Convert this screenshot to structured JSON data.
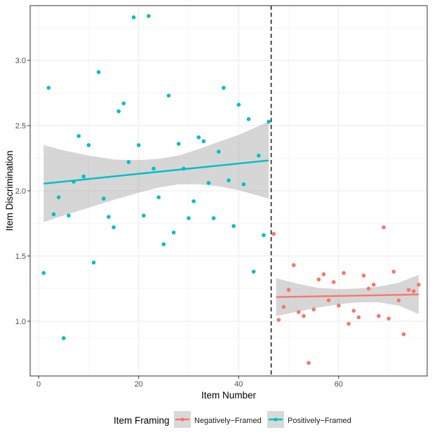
{
  "chart_data": {
    "type": "scatter",
    "xlabel": "Item Number",
    "ylabel": "Item Discrimination",
    "xlim": [
      -1.7,
      77.7
    ],
    "ylim": [
      0.58,
      3.42
    ],
    "xticks": [
      0,
      20,
      40,
      60
    ],
    "xtick_labels": [
      "0",
      "20",
      "40",
      "60"
    ],
    "yticks": [
      1.0,
      1.5,
      2.0,
      2.5,
      3.0
    ],
    "ytick_labels": [
      "1.0",
      "1.5",
      "2.0",
      "2.5",
      "3.0"
    ],
    "cutoff_x": 46.5,
    "grid": true,
    "legend": {
      "title": "Item Framing",
      "position": "bottom",
      "entries": [
        "Negatively−Framed",
        "Positively−Framed"
      ]
    },
    "series": [
      {
        "name": "Positively−Framed",
        "color": "#00BFC4",
        "points": [
          [
            1,
            1.37
          ],
          [
            2,
            2.79
          ],
          [
            3,
            1.82
          ],
          [
            4,
            1.95
          ],
          [
            5,
            0.87
          ],
          [
            6,
            1.81
          ],
          [
            7,
            2.07
          ],
          [
            8,
            2.42
          ],
          [
            9,
            2.11
          ],
          [
            10,
            2.35
          ],
          [
            11,
            1.45
          ],
          [
            12,
            2.91
          ],
          [
            13,
            1.94
          ],
          [
            14,
            1.8
          ],
          [
            15,
            1.72
          ],
          [
            16,
            2.61
          ],
          [
            17,
            2.67
          ],
          [
            18,
            2.22
          ],
          [
            19,
            3.33
          ],
          [
            20,
            2.35
          ],
          [
            21,
            1.81
          ],
          [
            22,
            3.34
          ],
          [
            23,
            2.17
          ],
          [
            24,
            1.95
          ],
          [
            25,
            1.59
          ],
          [
            26,
            2.73
          ],
          [
            27,
            1.68
          ],
          [
            28,
            2.36
          ],
          [
            29,
            2.17
          ],
          [
            30,
            1.79
          ],
          [
            31,
            1.92
          ],
          [
            32,
            2.41
          ],
          [
            33,
            2.38
          ],
          [
            34,
            2.06
          ],
          [
            35,
            1.79
          ],
          [
            36,
            2.3
          ],
          [
            37,
            2.79
          ],
          [
            38,
            2.08
          ],
          [
            39,
            1.73
          ],
          [
            40,
            2.66
          ],
          [
            41,
            2.05
          ],
          [
            42,
            2.55
          ],
          [
            43,
            1.38
          ],
          [
            44,
            2.27
          ],
          [
            45,
            1.66
          ],
          [
            46,
            2.53
          ]
        ],
        "fit": {
          "x": [
            1,
            46
          ],
          "y": [
            2.055,
            2.233
          ]
        },
        "band": {
          "x": [
            1,
            5,
            10,
            15,
            20,
            24,
            28,
            32,
            36,
            40,
            46
          ],
          "upper": [
            2.35,
            2.31,
            2.27,
            2.24,
            2.235,
            2.245,
            2.27,
            2.32,
            2.375,
            2.43,
            2.53
          ],
          "lower": [
            1.76,
            1.81,
            1.87,
            1.93,
            1.985,
            2.025,
            2.05,
            2.05,
            2.035,
            2.005,
            1.94
          ]
        }
      },
      {
        "name": "Negatively−Framed",
        "color": "#F8766D",
        "points": [
          [
            47,
            1.67
          ],
          [
            48,
            1.01
          ],
          [
            49,
            1.11
          ],
          [
            50,
            1.24
          ],
          [
            51,
            1.43
          ],
          [
            52,
            1.07
          ],
          [
            53,
            1.04
          ],
          [
            54,
            0.68
          ],
          [
            55,
            1.09
          ],
          [
            56,
            1.32
          ],
          [
            57,
            1.36
          ],
          [
            58,
            1.16
          ],
          [
            59,
            1.3
          ],
          [
            60,
            1.12
          ],
          [
            61,
            1.37
          ],
          [
            62,
            0.98
          ],
          [
            63,
            1.08
          ],
          [
            64,
            1.03
          ],
          [
            65,
            1.35
          ],
          [
            66,
            1.25
          ],
          [
            67,
            1.28
          ],
          [
            68,
            1.04
          ],
          [
            69,
            1.72
          ],
          [
            70,
            1.02
          ],
          [
            71,
            1.38
          ],
          [
            72,
            1.16
          ],
          [
            73,
            0.9
          ],
          [
            74,
            1.24
          ],
          [
            75,
            1.23
          ],
          [
            76,
            1.28
          ]
        ],
        "fit": {
          "x": [
            47.5,
            76
          ],
          "y": [
            1.185,
            1.205
          ]
        },
        "band": {
          "x": [
            47.5,
            52,
            56,
            60,
            64,
            68,
            72,
            76
          ],
          "upper": [
            1.33,
            1.285,
            1.255,
            1.245,
            1.25,
            1.265,
            1.295,
            1.355
          ],
          "lower": [
            1.04,
            1.075,
            1.105,
            1.13,
            1.145,
            1.145,
            1.12,
            1.055
          ]
        }
      }
    ]
  }
}
